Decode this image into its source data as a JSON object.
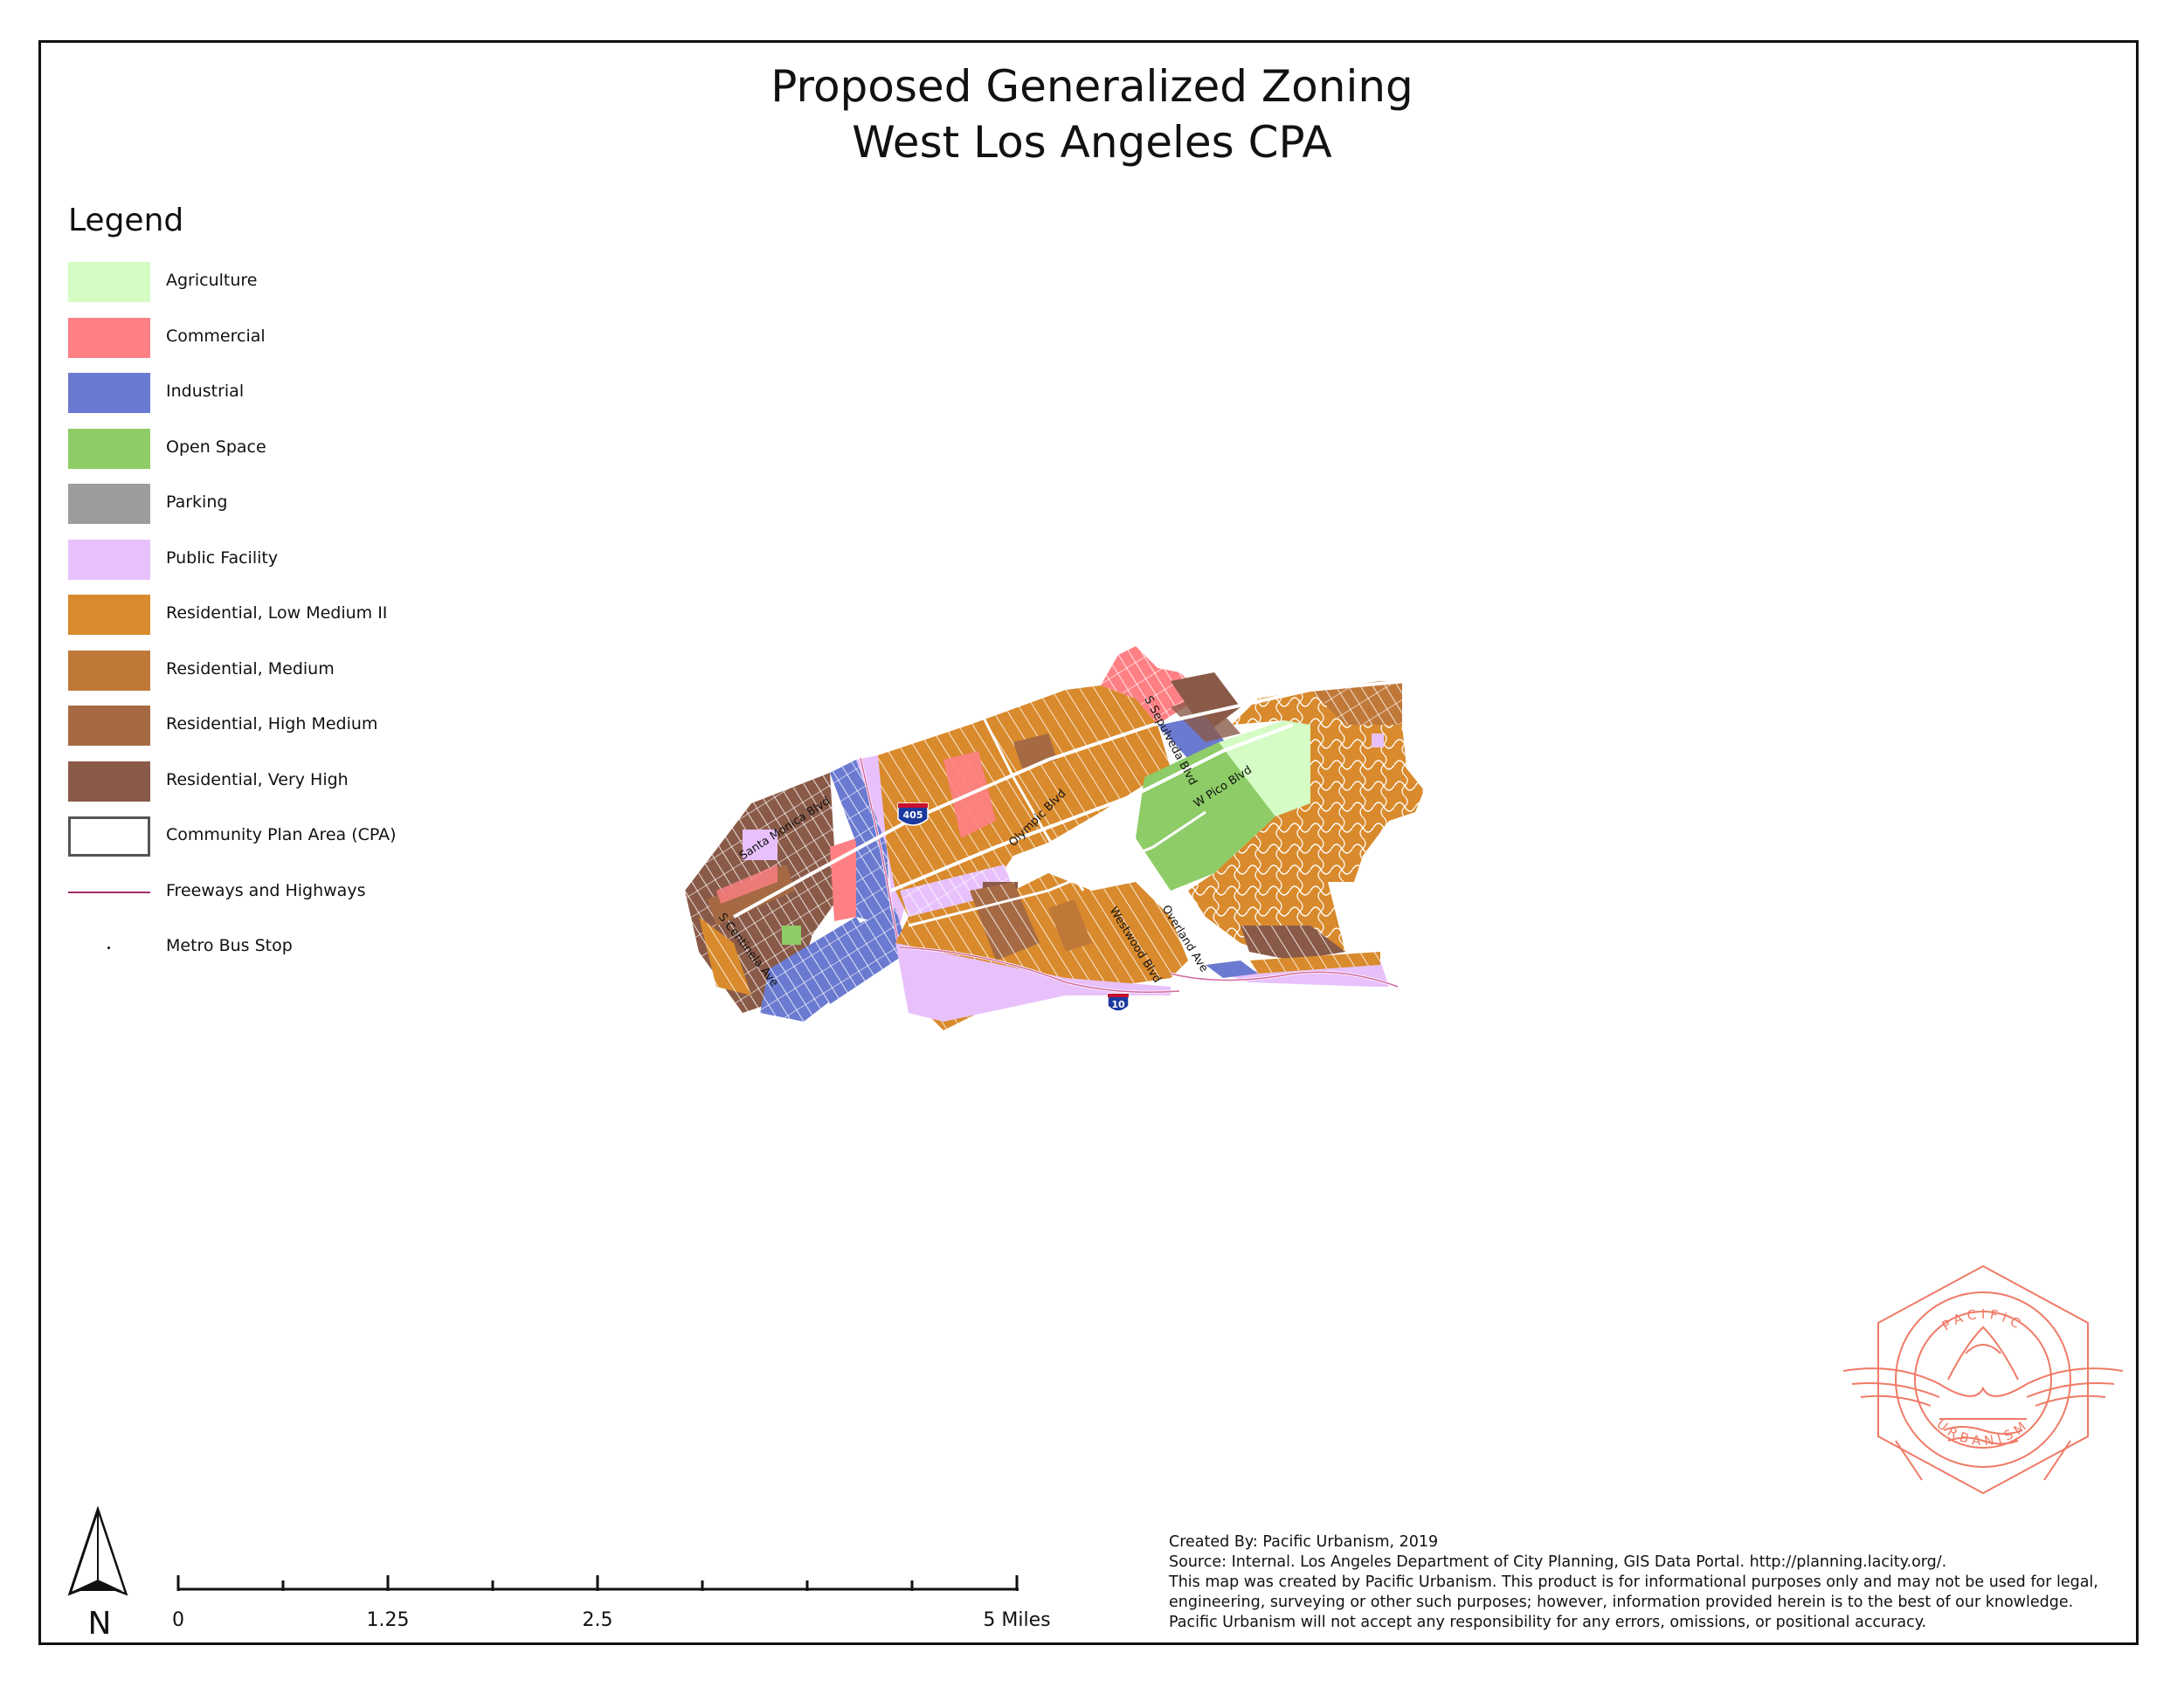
{
  "title": {
    "line1": "Proposed Generalized Zoning",
    "line2": "West Los Angeles CPA"
  },
  "legend": {
    "title": "Legend",
    "items": [
      {
        "label": "Agriculture",
        "color": "#d4fcc4",
        "kind": "fill"
      },
      {
        "label": "Commercial",
        "color": "#fe8085",
        "kind": "fill"
      },
      {
        "label": "Industrial",
        "color": "#6a7ad0",
        "kind": "fill"
      },
      {
        "label": "Open Space",
        "color": "#8dcc66",
        "kind": "fill"
      },
      {
        "label": "Parking",
        "color": "#9c9c9c",
        "kind": "fill"
      },
      {
        "label": "Public Facility",
        "color": "#e8c1fc",
        "kind": "fill"
      },
      {
        "label": "Residential, Low Medium II",
        "color": "#d98a2c",
        "kind": "fill"
      },
      {
        "label": "Residential, Medium",
        "color": "#c07839",
        "kind": "fill"
      },
      {
        "label": "Residential, High Medium",
        "color": "#a56a44",
        "kind": "fill"
      },
      {
        "label": "Residential, Very High",
        "color": "#8a5a48",
        "kind": "fill"
      },
      {
        "label": "Community Plan Area (CPA)",
        "color": "#ffffff",
        "kind": "outline"
      },
      {
        "label": "Freeways and Highways",
        "color": "#a0306a",
        "kind": "line"
      },
      {
        "label": "Metro Bus Stop",
        "color": "#111111",
        "kind": "point"
      }
    ]
  },
  "map": {
    "street_labels": [
      "Santa Monica Blvd",
      "S Centinela Ave",
      "Olympic Blvd",
      "S Sepulveda Blvd",
      "W Pico Blvd",
      "Westwood Blvd",
      "Overland Ave"
    ],
    "shields": [
      "405",
      "10"
    ]
  },
  "scale_bar": {
    "labels": [
      "0",
      "1.25",
      "2.5",
      "5 Miles"
    ]
  },
  "north_arrow": {
    "label": "N"
  },
  "credits": {
    "line1": "Created By: Pacific Urbanism, 2019",
    "line2": "Source: Internal. Los Angeles Department of City Planning, GIS Data Portal. http://planning.lacity.org/.",
    "line3": "This map was created by Pacific Urbanism. This product is for informational purposes only and may not be used for legal,",
    "line4": "engineering, surveying or other such purposes; however, information provided herein is to the best of our knowledge.",
    "line5": "Pacific Urbanism will not accept any responsibility for any errors, omissions, or positional accuracy."
  },
  "logo": {
    "text_top": "PACIFIC",
    "text_bottom": "URBANISM",
    "color": "#f07a66"
  }
}
